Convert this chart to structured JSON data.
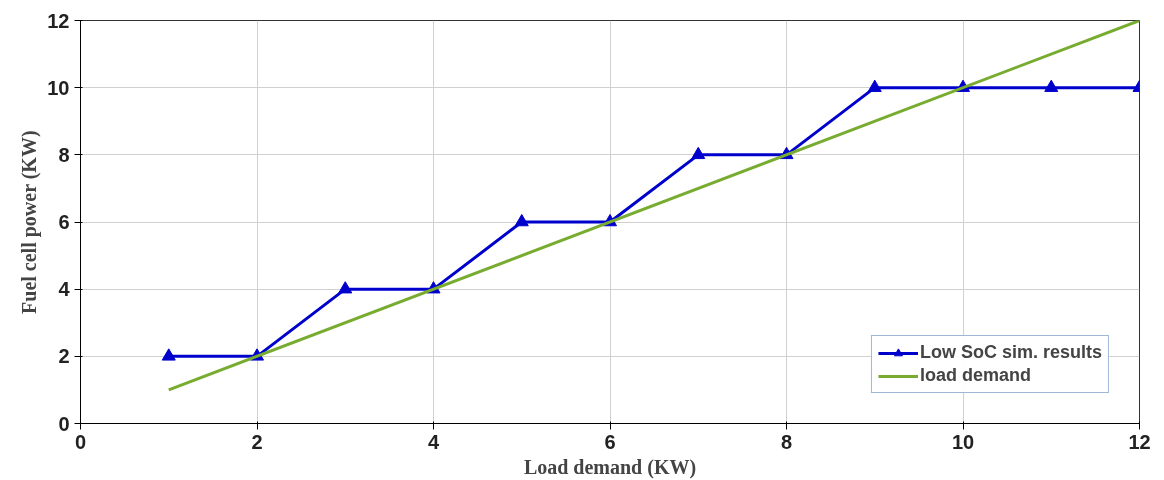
{
  "chart_data": {
    "type": "line",
    "xlabel": "Load demand (KW)",
    "ylabel": "Fuel cell power (KW)",
    "xlim": [
      0,
      12
    ],
    "ylim": [
      0,
      12
    ],
    "xticks": [
      0,
      2,
      4,
      6,
      8,
      10,
      12
    ],
    "yticks": [
      0,
      2,
      4,
      6,
      8,
      10,
      12
    ],
    "grid": true,
    "legend": "bottom right",
    "line_style": "solid",
    "series": [
      {
        "name": "Low SoC sim. results",
        "color": "#0000cd",
        "marker": "triangle",
        "x": [
          1,
          2,
          3,
          4,
          5,
          6,
          7,
          8,
          9,
          10,
          11,
          12
        ],
        "values": [
          2,
          2,
          4,
          4,
          6,
          6,
          8,
          8,
          10,
          10,
          10,
          10
        ]
      },
      {
        "name": "load demand",
        "color": "#77ac30",
        "marker": "none",
        "x": [
          1,
          12
        ],
        "values": [
          1,
          12
        ]
      }
    ]
  }
}
